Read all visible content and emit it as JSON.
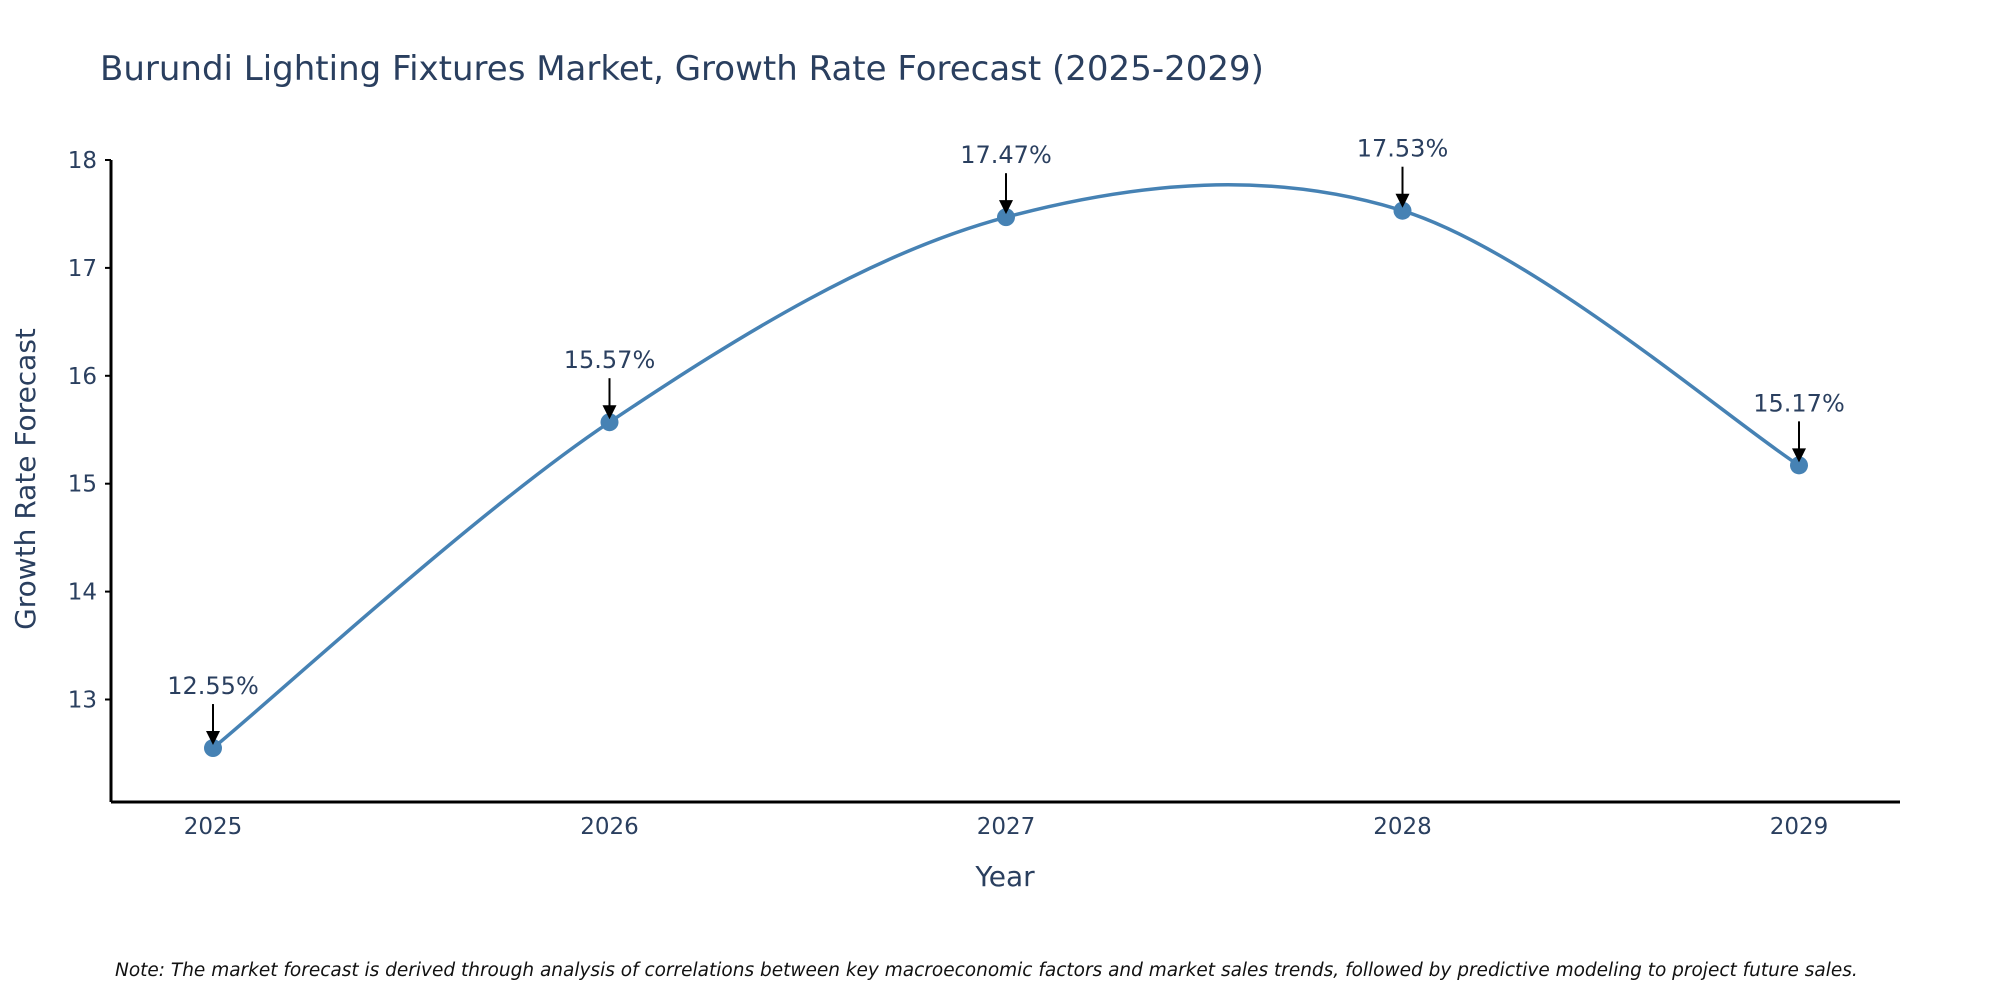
{
  "chart_data": {
    "type": "line",
    "title": "Burundi Lighting Fixtures Market, Growth Rate Forecast (2025-2029)",
    "xlabel": "Year",
    "ylabel": "Growth Rate Forecast",
    "categories": [
      "2025",
      "2026",
      "2027",
      "2028",
      "2029"
    ],
    "values": [
      12.55,
      15.57,
      17.47,
      17.53,
      15.17
    ],
    "data_labels": [
      "12.55%",
      "15.57%",
      "17.47%",
      "17.53%",
      "15.17%"
    ],
    "ylim": [
      12.05,
      18.0
    ],
    "yticks": [
      13,
      14,
      15,
      16,
      17,
      18
    ],
    "grid": false,
    "line_shape": "spline",
    "note": "Note: The market forecast is derived through analysis of correlations between key macroeconomic factors and market sales trends, followed by predictive modeling to project future sales."
  },
  "colors": {
    "series": "#4682b4",
    "text": "#2a3f5f",
    "axis": "#000000",
    "annotation_arrow": "#000000"
  }
}
